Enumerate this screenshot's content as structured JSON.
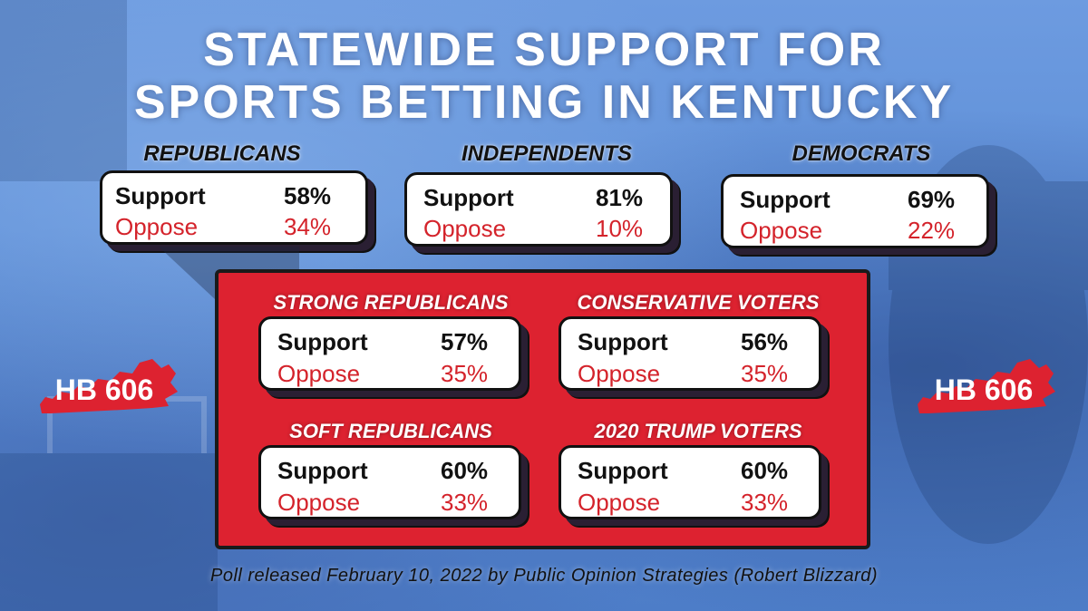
{
  "title": {
    "line1": "STATEWIDE SUPPORT FOR",
    "line2": "SPORTS BETTING IN KENTUCKY"
  },
  "groups": [
    {
      "label": "REPUBLICANS",
      "support_label": "Support",
      "support": "58%",
      "oppose_label": "Oppose",
      "oppose": "34%"
    },
    {
      "label": "INDEPENDENTS",
      "support_label": "Support",
      "support": "81%",
      "oppose_label": "Oppose",
      "oppose": "10%"
    },
    {
      "label": "DEMOCRATS",
      "support_label": "Support",
      "support": "69%",
      "oppose_label": "Oppose",
      "oppose": "22%"
    }
  ],
  "subgroups": [
    {
      "label": "STRONG REPUBLICANS",
      "support_label": "Support",
      "support": "57%",
      "oppose_label": "Oppose",
      "oppose": "35%"
    },
    {
      "label": "CONSERVATIVE VOTERS",
      "support_label": "Support",
      "support": "56%",
      "oppose_label": "Oppose",
      "oppose": "35%"
    },
    {
      "label": "SOFT REPUBLICANS",
      "support_label": "Support",
      "support": "60%",
      "oppose_label": "Oppose",
      "oppose": "33%"
    },
    {
      "label": "2020 TRUMP VOTERS",
      "support_label": "Support",
      "support": "60%",
      "oppose_label": "Oppose",
      "oppose": "33%"
    }
  ],
  "badges": {
    "left": "HB 606",
    "right": "HB 606"
  },
  "footer": "Poll released February 10, 2022 by Public Opinion Strategies (Robert Blizzard)",
  "colors": {
    "accent_red": "#dd2230",
    "oppose_red": "#d4232b",
    "background_blue": "#5b8fd6"
  }
}
